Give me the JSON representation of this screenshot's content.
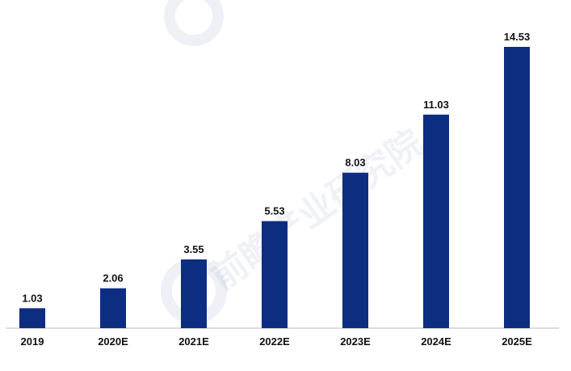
{
  "chart_data": {
    "type": "bar",
    "categories": [
      "2019",
      "2020E",
      "2021E",
      "2022E",
      "2023E",
      "2024E",
      "2025E"
    ],
    "values": [
      1.03,
      2.06,
      3.55,
      5.53,
      8.03,
      11.03,
      14.53
    ],
    "value_labels": [
      "1.03",
      "2.06",
      "3.55",
      "5.53",
      "8.03",
      "11.03",
      "14.53"
    ],
    "title": "",
    "xlabel": "",
    "ylabel": "",
    "ylim": [
      0,
      14.53
    ],
    "grid": false,
    "legend": "none",
    "bar_color": "#0d2d80",
    "axis_color": "#cfcfcf"
  },
  "watermark": {
    "text": "前瞻产业研究院"
  }
}
